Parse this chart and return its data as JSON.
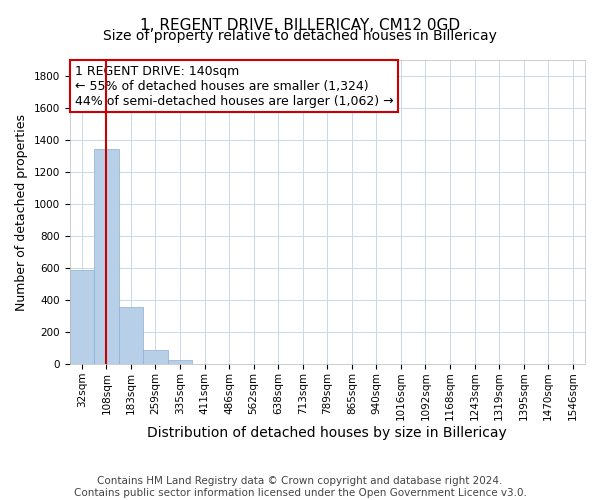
{
  "title": "1, REGENT DRIVE, BILLERICAY, CM12 0GD",
  "subtitle": "Size of property relative to detached houses in Billericay",
  "xlabel": "Distribution of detached houses by size in Billericay",
  "ylabel": "Number of detached properties",
  "bin_labels": [
    "32sqm",
    "108sqm",
    "183sqm",
    "259sqm",
    "335sqm",
    "411sqm",
    "486sqm",
    "562sqm",
    "638sqm",
    "713sqm",
    "789sqm",
    "865sqm",
    "940sqm",
    "1016sqm",
    "1092sqm",
    "1168sqm",
    "1243sqm",
    "1319sqm",
    "1395sqm",
    "1470sqm",
    "1546sqm"
  ],
  "bar_heights": [
    590,
    1345,
    355,
    90,
    28,
    2,
    0,
    0,
    0,
    0,
    0,
    0,
    0,
    0,
    0,
    0,
    0,
    0,
    0,
    0,
    0
  ],
  "bar_color": "#b8cfe8",
  "bar_edge_color": "#8ab0d4",
  "grid_color": "#c8d8ec",
  "background_color": "#ffffff",
  "vline_x": 1.0,
  "vline_color": "#cc0000",
  "ylim": [
    0,
    1900
  ],
  "yticks": [
    0,
    200,
    400,
    600,
    800,
    1000,
    1200,
    1400,
    1600,
    1800
  ],
  "annotation_line1": "1 REGENT DRIVE: 140sqm",
  "annotation_line2": "← 55% of detached houses are smaller (1,324)",
  "annotation_line3": "44% of semi-detached houses are larger (1,062) →",
  "annotation_box_color": "#cc0000",
  "footer_line1": "Contains HM Land Registry data © Crown copyright and database right 2024.",
  "footer_line2": "Contains public sector information licensed under the Open Government Licence v3.0.",
  "title_fontsize": 11,
  "subtitle_fontsize": 10,
  "xlabel_fontsize": 10,
  "ylabel_fontsize": 9,
  "tick_fontsize": 7.5,
  "annotation_fontsize": 9,
  "footer_fontsize": 7.5
}
